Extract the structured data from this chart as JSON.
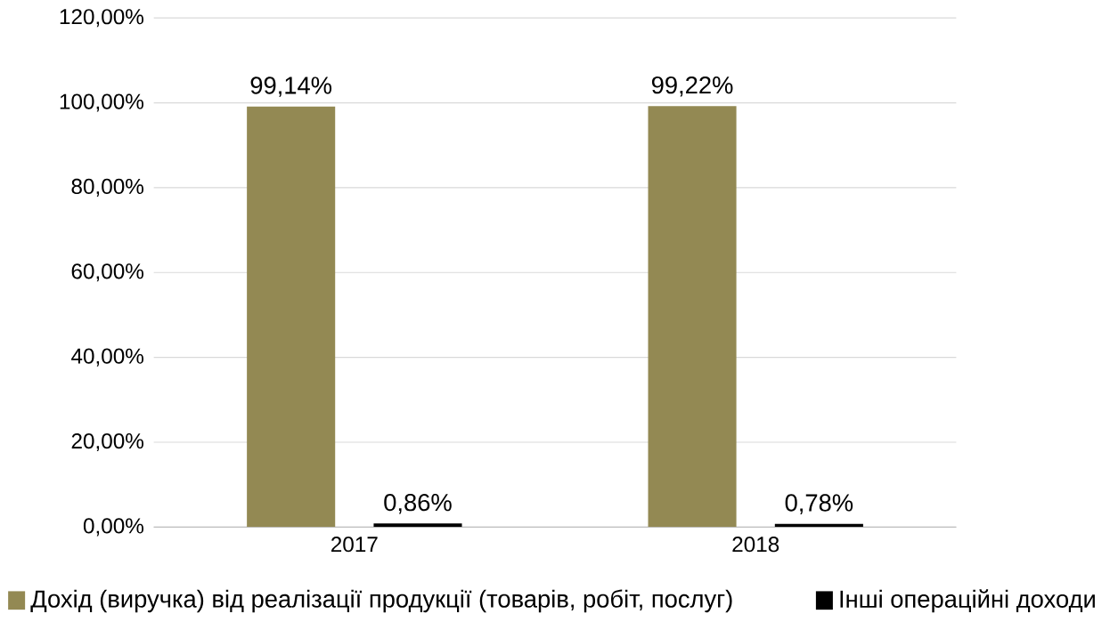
{
  "chart_data": {
    "type": "bar",
    "categories": [
      "2017",
      "2018"
    ],
    "series": [
      {
        "name": "Дохід (виручка) від реалізації продукції (товарів, робіт, послуг)",
        "color": "#938953",
        "values": [
          99.14,
          99.22
        ],
        "value_labels": [
          "99,14%",
          "99,22%"
        ]
      },
      {
        "name": "Інші операційні доходи",
        "color": "#000000",
        "values": [
          0.86,
          0.78
        ],
        "value_labels": [
          "0,86%",
          "0,78%"
        ]
      }
    ],
    "ylim": [
      0,
      120
    ],
    "yticks": [
      {
        "value": 0,
        "label": "0,00%"
      },
      {
        "value": 20,
        "label": "20,00%"
      },
      {
        "value": 40,
        "label": "40,00%"
      },
      {
        "value": 60,
        "label": "60,00%"
      },
      {
        "value": 80,
        "label": "80,00%"
      },
      {
        "value": 100,
        "label": "100,00%"
      },
      {
        "value": 120,
        "label": "120,00%"
      }
    ],
    "grid": "y",
    "legend": "bottom"
  }
}
